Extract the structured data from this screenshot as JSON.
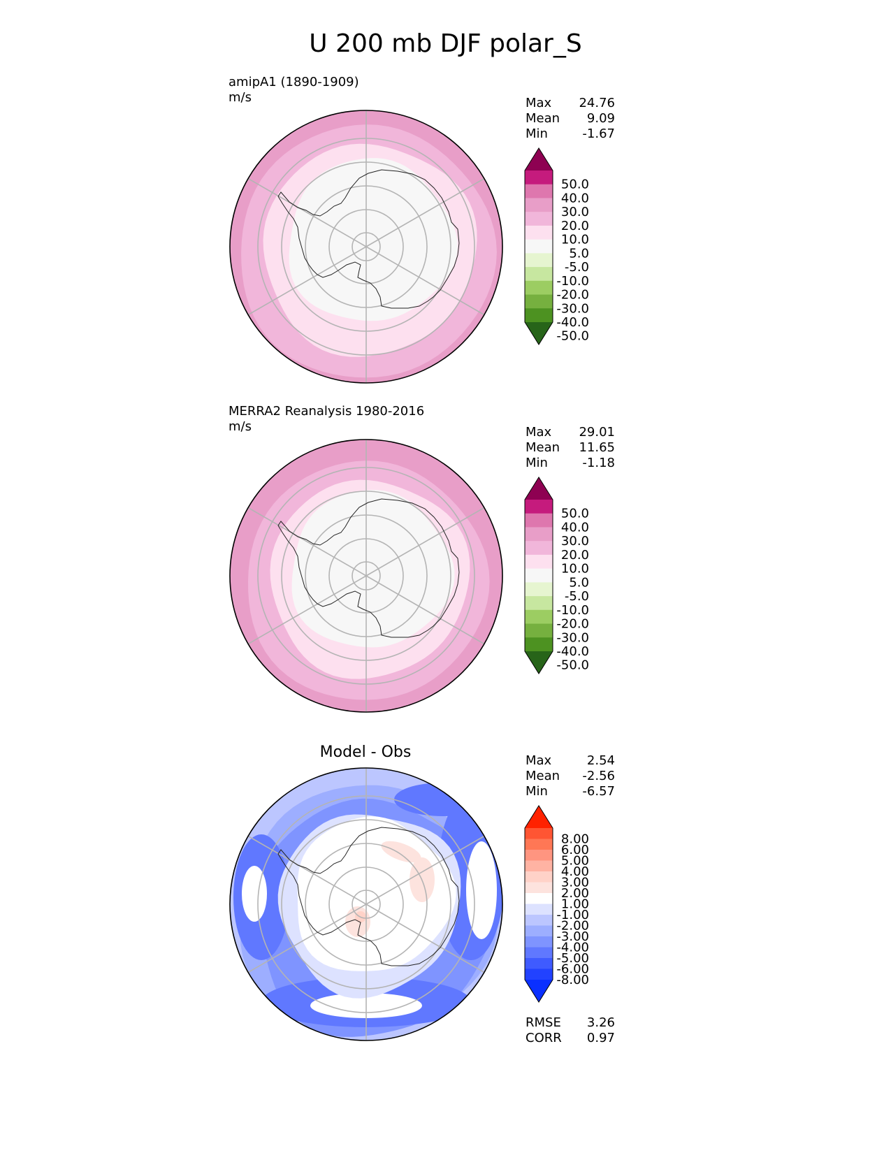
{
  "title": "U 200 mb DJF polar_S",
  "panels": [
    {
      "id": "model",
      "title_lines": [
        "amipA1 (1890-1909)",
        "m/s"
      ],
      "center_title": "",
      "stats": [
        {
          "label": "Max",
          "value": "24.76"
        },
        {
          "label": "Mean",
          "value": "9.09"
        },
        {
          "label": "Min",
          "value": "-1.67"
        }
      ],
      "extra_stats": [],
      "colorbar": {
        "colors": [
          "#8e0152",
          "#c51b7d",
          "#de77ae",
          "#e89ec8",
          "#f1b6da",
          "#fde0ef",
          "#f7f7f7",
          "#e6f5d0",
          "#c7e7a0",
          "#9ccd62",
          "#76b03f",
          "#4d9221",
          "#276419"
        ],
        "labels": [
          "50.0",
          "40.0",
          "30.0",
          "20.0",
          "10.0",
          "5.0",
          "-5.0",
          "-10.0",
          "-20.0",
          "-30.0",
          "-40.0",
          "-50.0"
        ]
      },
      "map_bands": [
        {
          "level": "20 to 30",
          "color": "#e89ec8"
        },
        {
          "level": "10 to 20",
          "color": "#f1b6da"
        },
        {
          "level": "5 to 10",
          "color": "#fde0ef"
        },
        {
          "level": "-5 to 5",
          "color": "#f7f7f7"
        }
      ]
    },
    {
      "id": "obs",
      "title_lines": [
        "MERRA2 Reanalysis 1980-2016",
        "m/s"
      ],
      "center_title": "",
      "stats": [
        {
          "label": "Max",
          "value": "29.01"
        },
        {
          "label": "Mean",
          "value": "11.65"
        },
        {
          "label": "Min",
          "value": "-1.18"
        }
      ],
      "extra_stats": [],
      "colorbar": {
        "colors": [
          "#8e0152",
          "#c51b7d",
          "#de77ae",
          "#e89ec8",
          "#f1b6da",
          "#fde0ef",
          "#f7f7f7",
          "#e6f5d0",
          "#c7e7a0",
          "#9ccd62",
          "#76b03f",
          "#4d9221",
          "#276419"
        ],
        "labels": [
          "50.0",
          "40.0",
          "30.0",
          "20.0",
          "10.0",
          "5.0",
          "-5.0",
          "-10.0",
          "-20.0",
          "-30.0",
          "-40.0",
          "-50.0"
        ]
      },
      "map_bands": [
        {
          "level": "20 to 30",
          "color": "#e89ec8"
        },
        {
          "level": "10 to 20",
          "color": "#f1b6da"
        },
        {
          "level": "5 to 10",
          "color": "#fde0ef"
        },
        {
          "level": "-5 to 5",
          "color": "#f7f7f7"
        }
      ]
    },
    {
      "id": "diff",
      "title_lines": [],
      "center_title": "Model - Obs",
      "stats": [
        {
          "label": "Max",
          "value": "2.54"
        },
        {
          "label": "Mean",
          "value": "-2.56"
        },
        {
          "label": "Min",
          "value": "-6.57"
        }
      ],
      "extra_stats": [
        {
          "label": "RMSE",
          "value": "3.26"
        },
        {
          "label": "CORR",
          "value": "0.97"
        }
      ],
      "colorbar": {
        "colors": [
          "#ff2200",
          "#ff5533",
          "#ff7755",
          "#ff9580",
          "#ffb3a3",
          "#ffd2c8",
          "#fde3de",
          "#ffffff",
          "#dde2ff",
          "#bcc6ff",
          "#9daeff",
          "#7f94ff",
          "#6078ff",
          "#3f5bff",
          "#2242ff",
          "#0a30ff"
        ],
        "labels": [
          "8.00",
          "6.00",
          "5.00",
          "4.00",
          "3.00",
          "2.00",
          "1.00",
          "-1.00",
          "-2.00",
          "-3.00",
          "-4.00",
          "-5.00",
          "-6.00",
          "-8.00"
        ]
      },
      "map_bands": [
        {
          "level": "-1 to -2",
          "color": "#dde2ff"
        },
        {
          "level": "-2 to -3",
          "color": "#bcc6ff"
        },
        {
          "level": "-3 to -4",
          "color": "#9daeff"
        },
        {
          "level": "-4 to -5",
          "color": "#7f94ff"
        },
        {
          "level": "-5 to -6",
          "color": "#6078ff"
        },
        {
          "level": "-1 to 1",
          "color": "#ffffff"
        },
        {
          "level": "1 to 2",
          "color": "#fde3de"
        },
        {
          "level": "2 to 3",
          "color": "#ffd2c8"
        }
      ]
    }
  ],
  "chart_data": [
    {
      "type": "heatmap",
      "title": "U 200 mb DJF polar_S",
      "subtitle": "amipA1 (1890-1909)",
      "units": "m/s",
      "projection": "south polar stereographic",
      "summary": {
        "max": 24.76,
        "mean": 9.09,
        "min": -1.67
      },
      "levels": [
        -50,
        -40,
        -30,
        -20,
        -10,
        -5,
        5,
        10,
        20,
        30,
        40,
        50
      ],
      "colormap": "PiYG (pink positive, green negative)"
    },
    {
      "type": "heatmap",
      "subtitle": "MERRA2 Reanalysis 1980-2016",
      "units": "m/s",
      "projection": "south polar stereographic",
      "summary": {
        "max": 29.01,
        "mean": 11.65,
        "min": -1.18
      },
      "levels": [
        -50,
        -40,
        -30,
        -20,
        -10,
        -5,
        5,
        10,
        20,
        30,
        40,
        50
      ],
      "colormap": "PiYG (pink positive, green negative)"
    },
    {
      "type": "heatmap",
      "subtitle": "Model - Obs",
      "projection": "south polar stereographic",
      "summary": {
        "max": 2.54,
        "mean": -2.56,
        "min": -6.57,
        "rmse": 3.26,
        "corr": 0.97
      },
      "levels": [
        -8,
        -6,
        -5,
        -4,
        -3,
        -2,
        -1,
        1,
        2,
        3,
        4,
        5,
        6,
        8
      ],
      "colormap": "blue-white-red diverging"
    }
  ]
}
